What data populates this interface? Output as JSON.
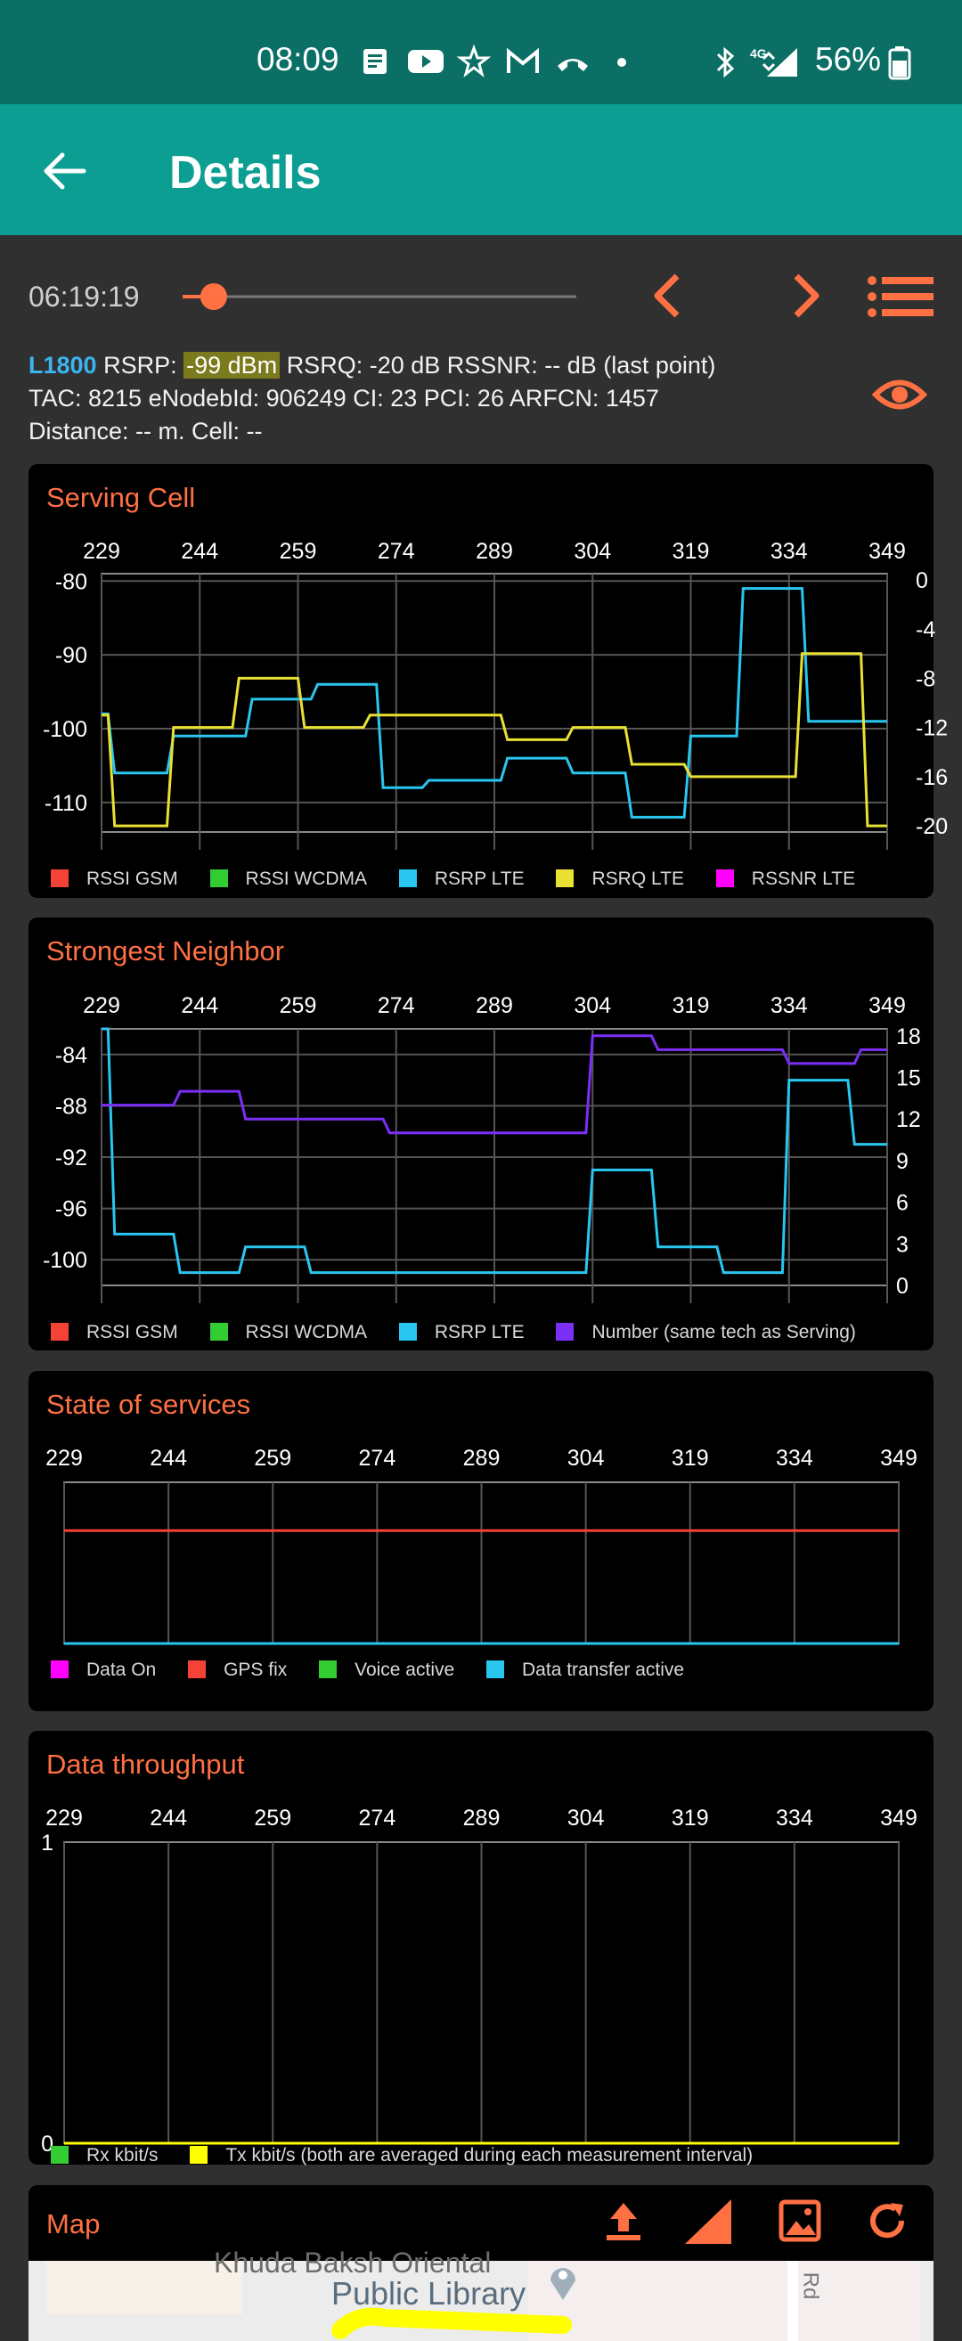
{
  "status_bar": {
    "time": "08:09",
    "network_label": "4G",
    "battery": "56%",
    "icons": [
      "news-icon",
      "youtube-icon",
      "star-icon",
      "gmail-icon",
      "call-icon",
      "dot-icon",
      "bluetooth-icon",
      "signal-icon",
      "battery-icon"
    ]
  },
  "app_bar": {
    "title": "Details",
    "back_icon": "arrow-back-icon"
  },
  "timeline": {
    "time": "06:19:19",
    "slider_position": 0.07,
    "prev_icon": "chevron-left-icon",
    "next_icon": "chevron-right-icon",
    "list_icon": "list-icon"
  },
  "info": {
    "tech": "L1800",
    "rsrp_label": "RSRP:",
    "rsrp_value": "-99 dBm",
    "rsrq": "RSRQ: -20 dB",
    "rssnr": "RSSNR: -- dB",
    "last_point": "(last point)",
    "line2": "TAC: 8215  eNodebId: 906249  CI: 23  PCI: 26  ARFCN: 1457",
    "line3": "Distance: -- m.   Cell: --",
    "eye_icon": "eye-icon"
  },
  "colors": {
    "accent": "#ff7043",
    "rssi_gsm": "#f44336",
    "rssi_wcdma": "#33cc33",
    "rsrp_lte": "#29c6f0",
    "rsrq_lte": "#e8e032",
    "rssnr_lte": "#ff00ff",
    "number": "#7b2ff7",
    "data_on": "#ff00ff",
    "gps_fix": "#f44336",
    "voice": "#33cc33",
    "data_transfer": "#29c6f0",
    "rx": "#33cc33",
    "tx": "#ffff00"
  },
  "serving_cell": {
    "title": "Serving Cell",
    "legend": [
      "RSSI GSM",
      "RSSI WCDMA",
      "RSRP LTE",
      "RSRQ LTE",
      "RSSNR LTE"
    ]
  },
  "strongest_neighbor": {
    "title": "Strongest Neighbor",
    "legend": [
      "RSSI GSM",
      "RSSI WCDMA",
      "RSRP LTE",
      "Number (same tech as Serving)"
    ]
  },
  "state_of_services": {
    "title": "State of services",
    "legend": [
      "Data On",
      "GPS fix",
      "Voice active",
      "Data transfer active"
    ]
  },
  "data_throughput": {
    "title": "Data throughput",
    "legend": [
      "Rx kbit/s",
      "Tx kbit/s (both are averaged during each measurement interval)"
    ]
  },
  "map": {
    "title": "Map",
    "icons": [
      "upload-icon",
      "signal-triangle-icon",
      "image-icon",
      "refresh-icon"
    ],
    "label_library": "Khuda Baksh Oriental",
    "label_library2": "Public Library",
    "label_road": "Rd"
  },
  "chart_data": [
    {
      "type": "line",
      "title": "Serving Cell",
      "x_ticks": [
        229,
        244,
        259,
        274,
        289,
        304,
        319,
        334,
        349
      ],
      "y_left_ticks": [
        -80,
        -90,
        -100,
        -110
      ],
      "y_right_ticks": [
        0,
        -4,
        -8,
        -12,
        -16,
        -20
      ],
      "xlim": [
        229,
        349
      ],
      "ylim_left": [
        -114,
        -79
      ],
      "ylim_right": [
        -20.5,
        0.5
      ],
      "series": [
        {
          "name": "RSRP LTE",
          "color": "#29c6f0",
          "axis": "left",
          "x": [
            229,
            230,
            231,
            239,
            240,
            251,
            252,
            261,
            262,
            271,
            272,
            278,
            279,
            290,
            291,
            300,
            301,
            309,
            310,
            318,
            319,
            326,
            327,
            336,
            337,
            345,
            346,
            349
          ],
          "y": [
            -98,
            -98,
            -106,
            -106,
            -101,
            -101,
            -96,
            -96,
            -94,
            -94,
            -108,
            -108,
            -107,
            -107,
            -104,
            -104,
            -106,
            -106,
            -112,
            -112,
            -101,
            -101,
            -81,
            -81,
            -99,
            -99,
            -99,
            -99
          ]
        },
        {
          "name": "RSRQ LTE",
          "color": "#e8e032",
          "axis": "right",
          "x": [
            229,
            230,
            231,
            239,
            240,
            249,
            250,
            259,
            260,
            269,
            270,
            290,
            291,
            300,
            301,
            309,
            310,
            318,
            319,
            327,
            328,
            335,
            336,
            345,
            346,
            349
          ],
          "y": [
            -11,
            -11,
            -20,
            -20,
            -12,
            -12,
            -8,
            -8,
            -12,
            -12,
            -11,
            -11,
            -13,
            -13,
            -12,
            -12,
            -15,
            -15,
            -16,
            -16,
            -16,
            -16,
            -6,
            -6,
            -20,
            -20
          ]
        }
      ]
    },
    {
      "type": "line",
      "title": "Strongest Neighbor",
      "x_ticks": [
        229,
        244,
        259,
        274,
        289,
        304,
        319,
        334,
        349
      ],
      "y_left_ticks": [
        -84,
        -88,
        -92,
        -96,
        -100
      ],
      "y_right_ticks": [
        18,
        15,
        12,
        9,
        6,
        3,
        0
      ],
      "xlim": [
        229,
        349
      ],
      "ylim_left": [
        -102,
        -82
      ],
      "ylim_right": [
        0,
        18.5
      ],
      "series": [
        {
          "name": "RSRP LTE",
          "color": "#29c6f0",
          "axis": "left",
          "x": [
            229,
            230,
            231,
            240,
            241,
            250,
            251,
            260,
            261,
            273,
            274,
            303,
            304,
            313,
            314,
            323,
            324,
            333,
            334,
            343,
            344,
            349
          ],
          "y": [
            -82,
            -82,
            -98,
            -98,
            -101,
            -101,
            -99,
            -99,
            -101,
            -101,
            -101,
            -101,
            -93,
            -93,
            -99,
            -99,
            -101,
            -101,
            -86,
            -86,
            -91,
            -91
          ]
        },
        {
          "name": "Number (same tech as Serving)",
          "color": "#7b2ff7",
          "axis": "right",
          "x": [
            229,
            230,
            231,
            240,
            241,
            250,
            251,
            272,
            273,
            303,
            304,
            313,
            314,
            333,
            334,
            344,
            345,
            349
          ],
          "y": [
            13,
            13,
            13,
            13,
            14,
            14,
            12,
            12,
            11,
            11,
            18,
            18,
            17,
            17,
            16,
            16,
            17,
            17
          ]
        }
      ]
    },
    {
      "type": "line",
      "title": "State of services",
      "x_ticks": [
        229,
        244,
        259,
        274,
        289,
        304,
        319,
        334,
        349
      ],
      "xlim": [
        229,
        349
      ],
      "series": [
        {
          "name": "GPS fix",
          "color": "#f44336",
          "level": 0.7
        },
        {
          "name": "Data transfer active",
          "color": "#29c6f0",
          "level": 0.0
        }
      ]
    },
    {
      "type": "line",
      "title": "Data throughput",
      "x_ticks": [
        229,
        244,
        259,
        274,
        289,
        304,
        319,
        334,
        349
      ],
      "y_left_ticks": [
        1,
        0
      ],
      "xlim": [
        229,
        349
      ],
      "ylim_left": [
        0,
        1
      ],
      "series": [
        {
          "name": "Tx kbit/s",
          "color": "#ffff00",
          "x": [
            229,
            349
          ],
          "y": [
            0,
            0
          ]
        }
      ]
    }
  ]
}
